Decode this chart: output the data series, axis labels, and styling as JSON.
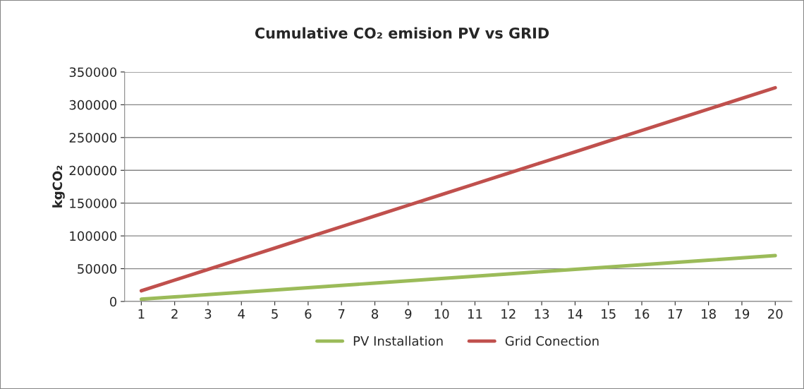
{
  "chart_data": {
    "type": "line",
    "title": "Cumulative CO₂ emision PV vs GRID",
    "ylabel": "kgCO₂",
    "categories": [
      "1",
      "2",
      "3",
      "4",
      "5",
      "6",
      "7",
      "8",
      "9",
      "10",
      "11",
      "12",
      "13",
      "14",
      "15",
      "16",
      "17",
      "18",
      "19",
      "20"
    ],
    "series": [
      {
        "name": "PV Installation",
        "color": "#9bbb59",
        "values": [
          3500,
          7000,
          10500,
          14000,
          17500,
          21000,
          24500,
          28000,
          31500,
          35000,
          38500,
          42000,
          45500,
          49000,
          52500,
          56000,
          59500,
          63000,
          66500,
          70000
        ]
      },
      {
        "name": "Grid Conection",
        "color": "#c0504d",
        "values": [
          16300,
          32600,
          48900,
          65200,
          81500,
          97800,
          114100,
          130400,
          146700,
          163000,
          179300,
          195600,
          211900,
          228200,
          244500,
          260800,
          277100,
          293400,
          309700,
          326000
        ]
      }
    ],
    "ylim": [
      0,
      350000
    ],
    "yticks": [
      0,
      50000,
      100000,
      150000,
      200000,
      250000,
      300000,
      350000
    ],
    "grid": "y",
    "legend": "bottom",
    "marker": "none",
    "line_style": "solid"
  }
}
